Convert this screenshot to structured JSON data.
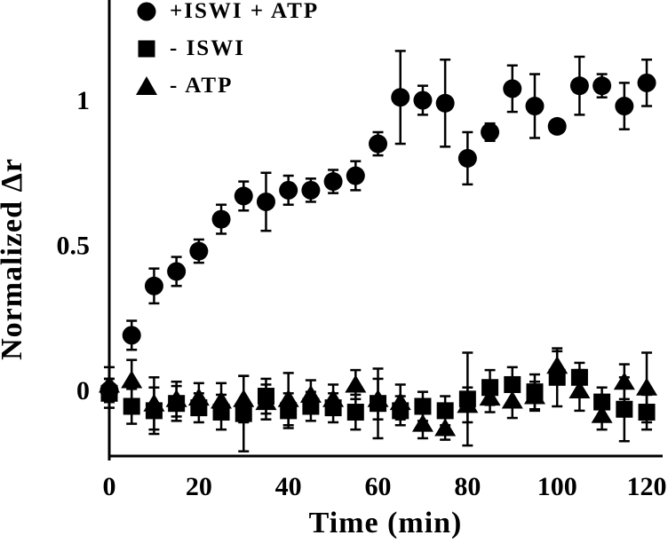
{
  "figure": {
    "background": "#ffffff",
    "ink_color": "#000000"
  },
  "chart_data": {
    "type": "scatter",
    "title": "",
    "xlabel": "Time (min)",
    "ylabel": "Normalized Δr",
    "x_ticks": [
      0,
      20,
      40,
      60,
      80,
      100,
      120
    ],
    "x_tick_labels": [
      "0",
      "20",
      "40",
      "60",
      "80",
      "100",
      "120"
    ],
    "y_ticks": [
      0,
      0.5,
      1
    ],
    "y_tick_labels": [
      "0",
      "0.5",
      "1"
    ],
    "xlim": [
      0,
      123
    ],
    "ylim": [
      -0.23,
      1.35
    ],
    "grid": false,
    "error_bars": true,
    "legend_position": "top-left-inside",
    "x": [
      0,
      5,
      10,
      15,
      20,
      25,
      30,
      35,
      40,
      45,
      50,
      55,
      60,
      65,
      70,
      75,
      80,
      85,
      90,
      95,
      100,
      105,
      110,
      115,
      120
    ],
    "series": [
      {
        "name": "+ISWI + ATP",
        "marker": "circle",
        "values": [
          0.0,
          0.19,
          0.36,
          0.41,
          0.48,
          0.59,
          0.67,
          0.65,
          0.69,
          0.69,
          0.72,
          0.74,
          0.85,
          1.01,
          1.0,
          0.99,
          0.8,
          0.89,
          1.04,
          0.98,
          0.91,
          1.05,
          1.05,
          0.98,
          1.06
        ],
        "errors": [
          0.04,
          0.05,
          0.06,
          0.05,
          0.04,
          0.05,
          0.05,
          0.1,
          0.05,
          0.04,
          0.04,
          0.05,
          0.04,
          0.16,
          0.05,
          0.15,
          0.09,
          0.03,
          0.08,
          0.11,
          0.02,
          0.1,
          0.04,
          0.08,
          0.08
        ]
      },
      {
        "name": "- ISWI",
        "marker": "square",
        "values": [
          -0.01,
          -0.055,
          -0.07,
          -0.045,
          -0.06,
          -0.075,
          -0.08,
          -0.02,
          -0.07,
          -0.055,
          -0.06,
          -0.075,
          -0.045,
          -0.07,
          -0.055,
          -0.07,
          -0.03,
          0.01,
          0.02,
          -0.005,
          0.045,
          0.045,
          -0.04,
          -0.065,
          -0.075
        ],
        "errors": [
          0.05,
          0.06,
          0.08,
          0.06,
          0.05,
          0.06,
          0.13,
          0.06,
          0.06,
          0.05,
          0.05,
          0.06,
          0.12,
          0.05,
          0.05,
          0.05,
          0.16,
          0.06,
          0.06,
          0.06,
          0.1,
          0.05,
          0.05,
          0.11,
          0.06
        ]
      },
      {
        "name": "- ATP",
        "marker": "triangle",
        "values": [
          0.02,
          0.035,
          -0.045,
          -0.03,
          -0.025,
          -0.035,
          -0.03,
          -0.04,
          -0.03,
          -0.015,
          -0.03,
          0.02,
          -0.03,
          -0.04,
          -0.115,
          -0.13,
          -0.05,
          -0.025,
          -0.035,
          -0.02,
          0.085,
          0.0,
          -0.085,
          0.03,
          0.01
        ],
        "errors": [
          0.06,
          0.07,
          0.09,
          0.06,
          0.05,
          0.06,
          0.08,
          0.06,
          0.09,
          0.05,
          0.05,
          0.05,
          0.07,
          0.06,
          0.05,
          0.04,
          0.06,
          0.05,
          0.06,
          0.05,
          0.05,
          0.07,
          0.05,
          0.06,
          0.12
        ]
      }
    ]
  }
}
